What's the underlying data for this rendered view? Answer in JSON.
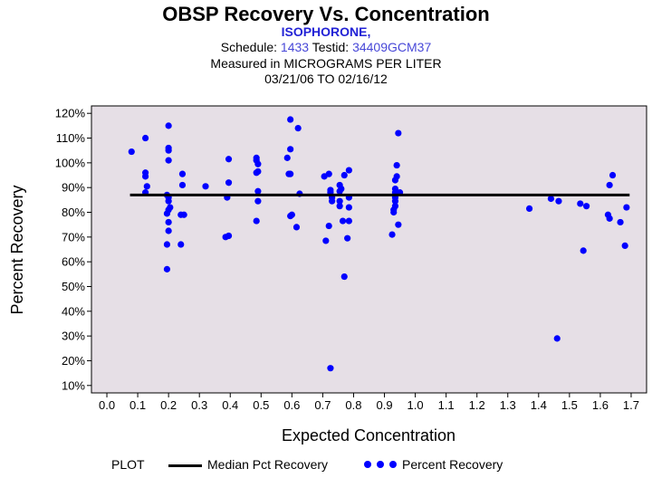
{
  "header": {
    "title": "OBSP Recovery Vs. Concentration",
    "analyte": "ISOPHORONE,",
    "schedule_label": "Schedule:",
    "schedule_value": "1433",
    "testid_label": "Testid:",
    "testid_value": "34409GCM37",
    "units_line": "Measured in  MICROGRAMS PER LITER",
    "date_range": "03/21/06 TO 02/16/12"
  },
  "legend": {
    "plot_label": "PLOT",
    "median_label": "Median Pct Recovery",
    "points_label": "Percent Recovery"
  },
  "colors": {
    "plot_background": "#e6dfe6",
    "points": "#0000ff",
    "median_line": "#000000"
  },
  "chart_data": {
    "type": "scatter",
    "title": "OBSP Recovery Vs. Concentration",
    "xlabel": "Expected Concentration",
    "ylabel": "Percent Recovery",
    "xlim": [
      -0.05,
      1.75
    ],
    "ylim": [
      7,
      123
    ],
    "x_ticks": [
      0.0,
      0.1,
      0.2,
      0.3,
      0.4,
      0.5,
      0.6,
      0.7,
      0.8,
      0.9,
      1.0,
      1.1,
      1.2,
      1.3,
      1.4,
      1.5,
      1.6,
      1.7
    ],
    "x_tick_labels": [
      "0.0",
      "0.1",
      "0.2",
      "0.3",
      "0.4",
      "0.5",
      "0.6",
      "0.7",
      "0.8",
      "0.9",
      "1.0",
      "1.1",
      "1.2",
      "1.3",
      "1.4",
      "1.5",
      "1.6",
      "1.7"
    ],
    "y_ticks": [
      10,
      20,
      30,
      40,
      50,
      60,
      70,
      80,
      90,
      100,
      110,
      120
    ],
    "y_tick_labels": [
      "10%",
      "20%",
      "30%",
      "40%",
      "50%",
      "60%",
      "70%",
      "80%",
      "90%",
      "100%",
      "110%",
      "120%"
    ],
    "median": 87,
    "median_x_range": [
      0.075,
      1.695
    ],
    "series": [
      {
        "name": "Percent Recovery",
        "points": [
          [
            0.08,
            104.5
          ],
          [
            0.125,
            110
          ],
          [
            0.125,
            96
          ],
          [
            0.125,
            94.5
          ],
          [
            0.13,
            90.5
          ],
          [
            0.125,
            88
          ],
          [
            0.195,
            57
          ],
          [
            0.195,
            67
          ],
          [
            0.2,
            72.5
          ],
          [
            0.2,
            76
          ],
          [
            0.195,
            79.5
          ],
          [
            0.2,
            81
          ],
          [
            0.205,
            82
          ],
          [
            0.2,
            84.5
          ],
          [
            0.2,
            86
          ],
          [
            0.195,
            87
          ],
          [
            0.2,
            101
          ],
          [
            0.2,
            105
          ],
          [
            0.2,
            106
          ],
          [
            0.2,
            115
          ],
          [
            0.24,
            67
          ],
          [
            0.24,
            79
          ],
          [
            0.25,
            79
          ],
          [
            0.245,
            91
          ],
          [
            0.245,
            95.5
          ],
          [
            0.32,
            90.5
          ],
          [
            0.385,
            70
          ],
          [
            0.395,
            70.5
          ],
          [
            0.39,
            86
          ],
          [
            0.395,
            92
          ],
          [
            0.395,
            101.5
          ],
          [
            0.485,
            76.5
          ],
          [
            0.49,
            84.5
          ],
          [
            0.49,
            88.5
          ],
          [
            0.485,
            96
          ],
          [
            0.49,
            96.5
          ],
          [
            0.49,
            99.5
          ],
          [
            0.485,
            101
          ],
          [
            0.485,
            102
          ],
          [
            0.585,
            102
          ],
          [
            0.595,
            95.5
          ],
          [
            0.59,
            95.5
          ],
          [
            0.595,
            105.5
          ],
          [
            0.595,
            117.5
          ],
          [
            0.595,
            78.5
          ],
          [
            0.6,
            79
          ],
          [
            0.615,
            74
          ],
          [
            0.625,
            87.5
          ],
          [
            0.62,
            114
          ],
          [
            0.705,
            94.5
          ],
          [
            0.71,
            68.5
          ],
          [
            0.72,
            74.5
          ],
          [
            0.725,
            17
          ],
          [
            0.72,
            95.5
          ],
          [
            0.725,
            88
          ],
          [
            0.725,
            89
          ],
          [
            0.73,
            86
          ],
          [
            0.73,
            84.5
          ],
          [
            0.755,
            82.5
          ],
          [
            0.755,
            84.5
          ],
          [
            0.755,
            88.5
          ],
          [
            0.76,
            89.5
          ],
          [
            0.755,
            91
          ],
          [
            0.765,
            76.5
          ],
          [
            0.77,
            54
          ],
          [
            0.77,
            95
          ],
          [
            0.78,
            69.5
          ],
          [
            0.785,
            76.5
          ],
          [
            0.785,
            82
          ],
          [
            0.785,
            86
          ],
          [
            0.785,
            97
          ],
          [
            0.925,
            71
          ],
          [
            0.93,
            80
          ],
          [
            0.93,
            81
          ],
          [
            0.935,
            82.5
          ],
          [
            0.935,
            84.5
          ],
          [
            0.935,
            86
          ],
          [
            0.935,
            88
          ],
          [
            0.935,
            89.5
          ],
          [
            0.935,
            93
          ],
          [
            0.94,
            94.5
          ],
          [
            0.94,
            99
          ],
          [
            0.945,
            112
          ],
          [
            0.945,
            75
          ],
          [
            0.95,
            88
          ],
          [
            1.37,
            81.5
          ],
          [
            1.44,
            85.5
          ],
          [
            1.46,
            29
          ],
          [
            1.465,
            84.5
          ],
          [
            1.535,
            83.5
          ],
          [
            1.545,
            64.5
          ],
          [
            1.555,
            82.5
          ],
          [
            1.625,
            79
          ],
          [
            1.63,
            77.5
          ],
          [
            1.63,
            91
          ],
          [
            1.64,
            95
          ],
          [
            1.665,
            76
          ],
          [
            1.68,
            66.5
          ],
          [
            1.685,
            82
          ]
        ]
      }
    ]
  }
}
